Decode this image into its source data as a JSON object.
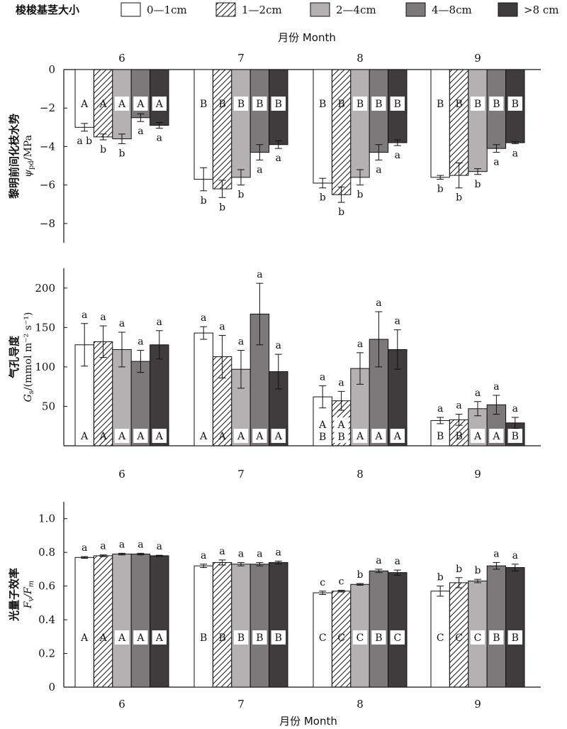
{
  "legend": {
    "title": "梭梭基茎大小",
    "items": [
      {
        "label": "0—1cm",
        "fill": "#ffffff",
        "pattern": "none"
      },
      {
        "label": "1—2cm",
        "fill": "#ffffff",
        "pattern": "hatch"
      },
      {
        "label": "2—4cm",
        "fill": "#b5b1b2",
        "pattern": "none"
      },
      {
        "label": "4—8cm",
        "fill": "#7d797a",
        "pattern": "none"
      },
      {
        "label": ">8 cm",
        "fill": "#403b3c",
        "pattern": "none"
      }
    ]
  },
  "top_axis_title": "月份 Month",
  "bottom_axis_title": "月份 Month",
  "chart_data": [
    {
      "type": "bar",
      "id": "psi",
      "ylabel_cn": "黎明前间化枝水势",
      "ylabel_sym": "ψ",
      "ylabel_sub": "pd",
      "ylabel_unit": "/MPa",
      "ylim": [
        -9,
        0
      ],
      "yticks": [
        0,
        -2,
        -4,
        -6,
        -8
      ],
      "categories": [
        "6",
        "7",
        "8",
        "9"
      ],
      "series": [
        {
          "values": [
            -3.0,
            -5.7,
            -5.9,
            -5.6
          ],
          "errors": [
            0.2,
            0.6,
            0.25,
            0.1
          ],
          "lower_letters": [
            "a b",
            "b",
            "b",
            "b"
          ],
          "upper_letters": [
            "A",
            "B",
            "B",
            "B"
          ]
        },
        {
          "values": [
            -3.5,
            -6.2,
            -6.5,
            -5.5
          ],
          "errors": [
            0.15,
            0.45,
            0.4,
            0.65
          ],
          "lower_letters": [
            "b",
            "b",
            "b",
            "b"
          ],
          "upper_letters": [
            "A",
            "B",
            "B",
            "B"
          ]
        },
        {
          "values": [
            -3.6,
            -5.6,
            -5.6,
            -5.3
          ],
          "errors": [
            0.25,
            0.4,
            0.4,
            0.15
          ],
          "lower_letters": [
            "b",
            "b",
            "b",
            "b"
          ],
          "upper_letters": [
            "A",
            "B",
            "B",
            "B"
          ]
        },
        {
          "values": [
            -2.5,
            -4.3,
            -4.3,
            -4.1
          ],
          "errors": [
            0.2,
            0.4,
            0.4,
            0.2
          ],
          "lower_letters": [
            "a",
            "a",
            "a",
            "a"
          ],
          "upper_letters": [
            "A",
            "B",
            "B",
            "B"
          ]
        },
        {
          "values": [
            -2.9,
            -3.9,
            -3.8,
            -3.8
          ],
          "errors": [
            0.15,
            0.2,
            0.15,
            0.05
          ],
          "lower_letters": [
            "a",
            "a",
            "a",
            "a"
          ],
          "upper_letters": [
            "A",
            "B",
            "B",
            "B"
          ]
        }
      ]
    },
    {
      "type": "bar",
      "id": "gs",
      "ylabel_cn": "气孔导度",
      "ylabel_sym": "G",
      "ylabel_sub": "s",
      "ylabel_unit": "/(mmol m⁻² s⁻¹)",
      "ylim": [
        0,
        225
      ],
      "yticks": [
        50,
        100,
        150,
        200
      ],
      "categories": [
        "6",
        "7",
        "8",
        "9"
      ],
      "series": [
        {
          "values": [
            128,
            143,
            62,
            32
          ],
          "errors": [
            27,
            8,
            14,
            4
          ],
          "upper_letters": [
            "a",
            "a",
            "a",
            "a"
          ],
          "lower_letters": [
            "A",
            "A",
            "A B",
            "B"
          ]
        },
        {
          "values": [
            132,
            113,
            57,
            33
          ],
          "errors": [
            20,
            27,
            12,
            7
          ],
          "upper_letters": [
            "a",
            "a",
            "a",
            "a"
          ],
          "lower_letters": [
            "A",
            "A",
            "A B",
            "B"
          ]
        },
        {
          "values": [
            122,
            97,
            98,
            47
          ],
          "errors": [
            22,
            24,
            20,
            9
          ],
          "upper_letters": [
            "a",
            "a",
            "a",
            "a"
          ],
          "lower_letters": [
            "A",
            "A",
            "A",
            "A"
          ]
        },
        {
          "values": [
            107,
            167,
            135,
            52
          ],
          "errors": [
            14,
            39,
            35,
            12
          ],
          "upper_letters": [
            "a",
            "a",
            "a",
            "a"
          ],
          "lower_letters": [
            "A",
            "A",
            "A",
            "A"
          ]
        },
        {
          "values": [
            128,
            94,
            122,
            29
          ],
          "errors": [
            18,
            22,
            25,
            7
          ],
          "upper_letters": [
            "a",
            "a",
            "a",
            "a"
          ],
          "lower_letters": [
            "A",
            "A",
            "A",
            "B"
          ]
        }
      ]
    },
    {
      "type": "bar",
      "id": "fvfm",
      "ylabel_cn": "光量子效率",
      "ylabel_sym": "F",
      "ylabel_sub": "v",
      "ylabel_unit": "/F",
      "ylabel_sub2": "m",
      "ylim": [
        0,
        1.1
      ],
      "yticks": [
        0,
        0.2,
        0.4,
        0.6,
        0.8,
        1.0
      ],
      "ytick_labels": [
        "0",
        "0.2",
        "0.4",
        "0.6",
        "0.8",
        "1.0"
      ],
      "categories": [
        "6",
        "7",
        "8",
        "9"
      ],
      "series": [
        {
          "values": [
            0.77,
            0.72,
            0.56,
            0.57
          ],
          "errors": [
            0.005,
            0.01,
            0.01,
            0.03
          ],
          "upper_letters": [
            "a",
            "a",
            "c",
            "b"
          ],
          "lower_letters": [
            "A",
            "B",
            "C",
            "C"
          ]
        },
        {
          "values": [
            0.78,
            0.74,
            0.57,
            0.62
          ],
          "errors": [
            0.005,
            0.015,
            0.005,
            0.03
          ],
          "upper_letters": [
            "a",
            "a",
            "c",
            "b"
          ],
          "lower_letters": [
            "A",
            "B",
            "C",
            "C"
          ]
        },
        {
          "values": [
            0.79,
            0.73,
            0.61,
            0.63
          ],
          "errors": [
            0.005,
            0.01,
            0.005,
            0.01
          ],
          "upper_letters": [
            "a",
            "a",
            "b",
            "b"
          ],
          "lower_letters": [
            "A",
            "B",
            "C",
            "C"
          ]
        },
        {
          "values": [
            0.79,
            0.73,
            0.69,
            0.72
          ],
          "errors": [
            0.005,
            0.01,
            0.01,
            0.02
          ],
          "upper_letters": [
            "a",
            "a",
            "a",
            "a"
          ],
          "lower_letters": [
            "A",
            "B",
            "B",
            "B"
          ]
        },
        {
          "values": [
            0.78,
            0.74,
            0.68,
            0.71
          ],
          "errors": [
            0.003,
            0.008,
            0.015,
            0.02
          ],
          "upper_letters": [
            "a",
            "a",
            "a",
            "a"
          ],
          "lower_letters": [
            "A",
            "B",
            "C",
            "B"
          ]
        }
      ]
    }
  ]
}
